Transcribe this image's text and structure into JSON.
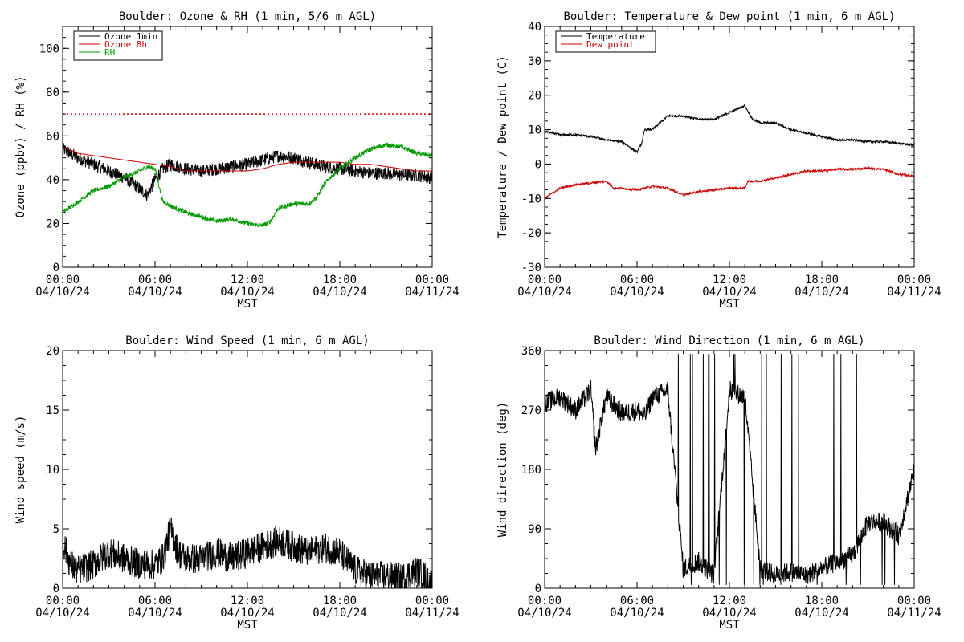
{
  "chart_data": [
    {
      "id": "ozone_rh",
      "type": "line",
      "title": "Boulder: Ozone & RH (1 min, 5/6 m AGL)",
      "ylabel": "Ozone (ppbv) / RH (%)",
      "xlabel": "MST",
      "xticks": [
        {
          "time": "00:00",
          "date": "04/10/24"
        },
        {
          "time": "06:00",
          "date": "04/10/24"
        },
        {
          "time": "12:00",
          "date": "04/10/24"
        },
        {
          "time": "18:00",
          "date": "04/10/24"
        },
        {
          "time": "00:00",
          "date": "04/11/24"
        }
      ],
      "xlim_hours": [
        0,
        24
      ],
      "ylim": [
        0,
        110
      ],
      "yticks": [
        0,
        20,
        40,
        60,
        80,
        100
      ],
      "legend": "top-left",
      "reference_line": {
        "y": 70,
        "color": "#cc0000",
        "style": "dotted"
      },
      "series": [
        {
          "name": "Ozone 1min",
          "color": "#000000",
          "noise": 3,
          "points": [
            [
              0,
              54
            ],
            [
              1,
              50
            ],
            [
              2,
              47
            ],
            [
              3,
              44
            ],
            [
              4,
              41
            ],
            [
              4.8,
              37
            ],
            [
              5.5,
              33
            ],
            [
              6,
              40
            ],
            [
              6.5,
              45
            ],
            [
              7,
              47
            ],
            [
              8,
              45
            ],
            [
              9,
              44
            ],
            [
              10,
              45
            ],
            [
              11,
              46
            ],
            [
              12,
              47
            ],
            [
              13,
              49
            ],
            [
              14,
              51
            ],
            [
              15,
              50
            ],
            [
              16,
              48
            ],
            [
              17,
              46
            ],
            [
              18,
              45
            ],
            [
              19,
              44
            ],
            [
              20,
              43
            ],
            [
              21,
              43
            ],
            [
              22,
              42
            ],
            [
              23,
              42
            ],
            [
              24,
              41
            ]
          ]
        },
        {
          "name": "Ozone 8h",
          "color": "#cc0000",
          "noise": 0,
          "points": [
            [
              0,
              55
            ],
            [
              1,
              52
            ],
            [
              2,
              51
            ],
            [
              3,
              50
            ],
            [
              4,
              49
            ],
            [
              5,
              48
            ],
            [
              6,
              47
            ],
            [
              7,
              46
            ],
            [
              8,
              44
            ],
            [
              9,
              44
            ],
            [
              10,
              44
            ],
            [
              11,
              44
            ],
            [
              12,
              44
            ],
            [
              13,
              45
            ],
            [
              14,
              47
            ],
            [
              15,
              48
            ],
            [
              16,
              48
            ],
            [
              17,
              48
            ],
            [
              18,
              48
            ],
            [
              19,
              47
            ],
            [
              20,
              47
            ],
            [
              21,
              46
            ],
            [
              22,
              45
            ],
            [
              23,
              44
            ],
            [
              24,
              44
            ]
          ]
        },
        {
          "name": "RH",
          "color": "#009900",
          "noise": 1,
          "points": [
            [
              0,
              25
            ],
            [
              1,
              30
            ],
            [
              2,
              35
            ],
            [
              3,
              37
            ],
            [
              4,
              41
            ],
            [
              5,
              44
            ],
            [
              5.5,
              46
            ],
            [
              6,
              45
            ],
            [
              6.5,
              30
            ],
            [
              7,
              28
            ],
            [
              8,
              25
            ],
            [
              9,
              23
            ],
            [
              10,
              21
            ],
            [
              11,
              22
            ],
            [
              12,
              20
            ],
            [
              13,
              19
            ],
            [
              13.5,
              21
            ],
            [
              14,
              27
            ],
            [
              15,
              29
            ],
            [
              16,
              29
            ],
            [
              16.5,
              32
            ],
            [
              17,
              38
            ],
            [
              17.5,
              42
            ],
            [
              18,
              45
            ],
            [
              19,
              50
            ],
            [
              20,
              54
            ],
            [
              21,
              56
            ],
            [
              22,
              55
            ],
            [
              23,
              52
            ],
            [
              24,
              51
            ]
          ]
        }
      ]
    },
    {
      "id": "temp_dew",
      "type": "line",
      "title": "Boulder: Temperature & Dew point (1 min, 6 m AGL)",
      "ylabel": "Temperature / Dew point (C)",
      "xlabel": "MST",
      "xticks": [
        {
          "time": "00:00",
          "date": "04/10/24"
        },
        {
          "time": "06:00",
          "date": "04/10/24"
        },
        {
          "time": "12:00",
          "date": "04/10/24"
        },
        {
          "time": "18:00",
          "date": "04/10/24"
        },
        {
          "time": "00:00",
          "date": "04/11/24"
        }
      ],
      "xlim_hours": [
        0,
        24
      ],
      "ylim": [
        -30,
        40
      ],
      "yticks": [
        -30,
        -20,
        -10,
        0,
        10,
        20,
        30,
        40
      ],
      "legend": "top-left",
      "series": [
        {
          "name": "Temperature",
          "color": "#000000",
          "noise": 0.3,
          "points": [
            [
              0,
              9.5
            ],
            [
              1,
              8.5
            ],
            [
              2,
              8.5
            ],
            [
              3,
              8
            ],
            [
              4,
              7
            ],
            [
              5,
              6.5
            ],
            [
              5.5,
              5
            ],
            [
              6,
              3.5
            ],
            [
              6.3,
              6
            ],
            [
              6.5,
              10
            ],
            [
              7,
              10
            ],
            [
              7.5,
              12
            ],
            [
              8,
              14
            ],
            [
              9,
              14
            ],
            [
              10,
              13
            ],
            [
              11,
              13
            ],
            [
              12,
              15
            ],
            [
              12.5,
              16
            ],
            [
              13,
              17
            ],
            [
              13.5,
              13
            ],
            [
              14,
              12
            ],
            [
              15,
              12
            ],
            [
              16,
              10
            ],
            [
              17,
              9
            ],
            [
              18,
              8
            ],
            [
              19,
              7
            ],
            [
              20,
              7
            ],
            [
              21,
              6.5
            ],
            [
              22,
              6.5
            ],
            [
              23,
              6
            ],
            [
              24,
              5.5
            ]
          ]
        },
        {
          "name": "Dew point",
          "color": "#cc0000",
          "noise": 0.3,
          "points": [
            [
              0,
              -10
            ],
            [
              1,
              -7
            ],
            [
              2,
              -6
            ],
            [
              3,
              -5.5
            ],
            [
              4,
              -5
            ],
            [
              4.5,
              -7
            ],
            [
              5,
              -7
            ],
            [
              6,
              -7.5
            ],
            [
              7,
              -6.5
            ],
            [
              8,
              -7
            ],
            [
              9,
              -9
            ],
            [
              10,
              -8
            ],
            [
              11,
              -7.5
            ],
            [
              12,
              -7
            ],
            [
              13,
              -7
            ],
            [
              13.2,
              -5
            ],
            [
              14,
              -5
            ],
            [
              15,
              -4
            ],
            [
              16,
              -3
            ],
            [
              17,
              -2
            ],
            [
              18,
              -2
            ],
            [
              19,
              -1.5
            ],
            [
              20,
              -1.5
            ],
            [
              21,
              -1.2
            ],
            [
              22,
              -1.5
            ],
            [
              23,
              -3
            ],
            [
              24,
              -3.5
            ]
          ]
        }
      ]
    },
    {
      "id": "wind_speed",
      "type": "line",
      "title": "Boulder: Wind Speed (1 min, 6 m AGL)",
      "ylabel": "Wind speed (m/s)",
      "xlabel": "MST",
      "xticks": [
        {
          "time": "00:00",
          "date": "04/10/24"
        },
        {
          "time": "06:00",
          "date": "04/10/24"
        },
        {
          "time": "12:00",
          "date": "04/10/24"
        },
        {
          "time": "18:00",
          "date": "04/10/24"
        },
        {
          "time": "00:00",
          "date": "04/11/24"
        }
      ],
      "xlim_hours": [
        0,
        24
      ],
      "ylim": [
        0,
        20
      ],
      "yticks": [
        0,
        5,
        10,
        15,
        20
      ],
      "series": [
        {
          "color": "#000000",
          "noise": 1.3,
          "points": [
            [
              0,
              4
            ],
            [
              0.5,
              2
            ],
            [
              1,
              1.5
            ],
            [
              2,
              2
            ],
            [
              3,
              3
            ],
            [
              4,
              2.5
            ],
            [
              5,
              2
            ],
            [
              6,
              2
            ],
            [
              6.5,
              2.5
            ],
            [
              7,
              5
            ],
            [
              7.5,
              3
            ],
            [
              8,
              2.5
            ],
            [
              9,
              2.5
            ],
            [
              10,
              3
            ],
            [
              11,
              2.5
            ],
            [
              12,
              3
            ],
            [
              13,
              3.5
            ],
            [
              14,
              4
            ],
            [
              15,
              3.5
            ],
            [
              16,
              3
            ],
            [
              17,
              3.5
            ],
            [
              18,
              3
            ],
            [
              19,
              1.5
            ],
            [
              20,
              1
            ],
            [
              21,
              1
            ],
            [
              22,
              0.8
            ],
            [
              23,
              1.5
            ],
            [
              24,
              0.5
            ]
          ]
        }
      ]
    },
    {
      "id": "wind_dir",
      "type": "line",
      "title": "Boulder: Wind Direction (1 min, 6 m AGL)",
      "ylabel": "Wind direction (deg)",
      "xlabel": "MST",
      "xticks": [
        {
          "time": "00:00",
          "date": "04/10/24"
        },
        {
          "time": "06:00",
          "date": "04/10/24"
        },
        {
          "time": "12:00",
          "date": "04/10/24"
        },
        {
          "time": "18:00",
          "date": "04/10/24"
        },
        {
          "time": "00:00",
          "date": "04/11/24"
        }
      ],
      "xlim_hours": [
        0,
        24
      ],
      "ylim": [
        0,
        360
      ],
      "yticks": [
        0,
        90,
        180,
        270,
        360
      ],
      "series": [
        {
          "color": "#000000",
          "noise": 15,
          "points": [
            [
              0,
              280
            ],
            [
              1,
              290
            ],
            [
              2,
              270
            ],
            [
              3,
              300
            ],
            [
              3.3,
              210
            ],
            [
              4,
              290
            ],
            [
              5,
              265
            ],
            [
              6,
              270
            ],
            [
              6.5,
              260
            ],
            [
              7,
              290
            ],
            [
              8,
              300
            ],
            [
              9,
              30
            ],
            [
              10,
              40
            ],
            [
              11,
              20
            ],
            [
              12,
              300
            ],
            [
              13,
              290
            ],
            [
              14,
              30
            ],
            [
              15,
              20
            ],
            [
              16,
              25
            ],
            [
              17,
              20
            ],
            [
              18,
              30
            ],
            [
              19,
              40
            ],
            [
              20,
              50
            ],
            [
              21,
              100
            ],
            [
              22,
              100
            ],
            [
              23,
              80
            ],
            [
              24,
              180
            ]
          ]
        }
      ]
    }
  ]
}
